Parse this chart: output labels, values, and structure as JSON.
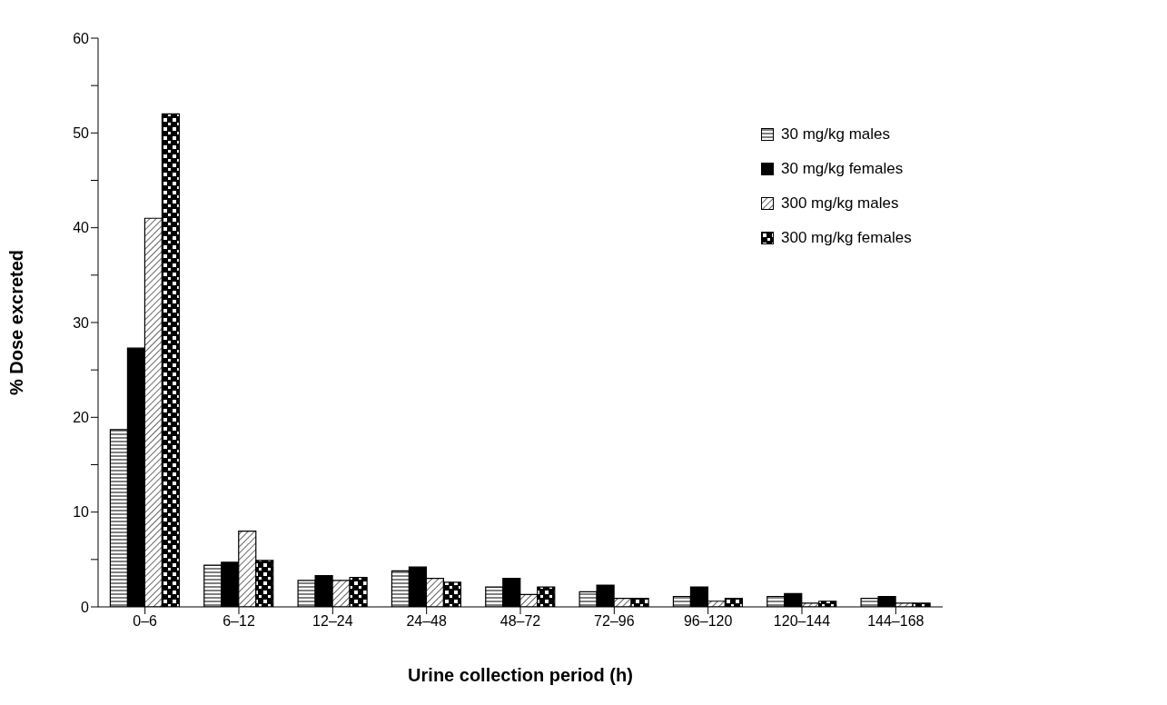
{
  "chart_data": {
    "type": "bar",
    "xlabel": "Urine collection period (h)",
    "ylabel": "% Dose excreted",
    "categories": [
      "0–6",
      "6–12",
      "12–24",
      "24–48",
      "48–72",
      "72–96",
      "96–120",
      "120–144",
      "144–168"
    ],
    "series": [
      {
        "name": "30 mg/kg males",
        "color": "#000000",
        "values": [
          18.7,
          4.4,
          2.8,
          3.8,
          2.1,
          1.6,
          1.1,
          1.1,
          0.9
        ]
      },
      {
        "name": "30 mg/kg females",
        "color": "#000000",
        "values": [
          27.3,
          4.7,
          3.3,
          4.2,
          3.0,
          2.3,
          2.1,
          1.4,
          1.1
        ]
      },
      {
        "name": "300 mg/kg males",
        "color": "#000000",
        "values": [
          41,
          8.0,
          2.8,
          3.0,
          1.3,
          0.9,
          0.6,
          0.4,
          0.4
        ]
      },
      {
        "name": "300 mg/kg females",
        "color": "#000000",
        "values": [
          52,
          4.9,
          3.1,
          2.6,
          2.1,
          0.9,
          0.9,
          0.6,
          0.4
        ]
      }
    ],
    "ylim": [
      0,
      60
    ],
    "yticks": [
      0,
      {
        "value": 5,
        "label": null
      },
      10,
      {
        "value": 15,
        "label": null
      },
      20,
      {
        "value": 25,
        "label": null
      },
      30,
      {
        "value": 35,
        "label": null
      },
      40,
      {
        "value": 45,
        "label": null
      },
      50,
      {
        "value": 55,
        "label": null
      },
      60
    ],
    "grid": false,
    "legend": "top right"
  }
}
